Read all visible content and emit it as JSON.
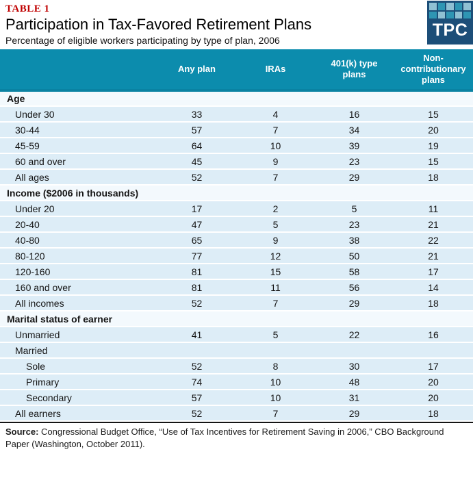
{
  "header": {
    "table_label": "TABLE 1",
    "title": "Participation in Tax-Favored Retirement Plans",
    "subtitle": "Percentage of eligible workers participating by type of plan, 2006",
    "logo": {
      "text": "TPC",
      "pattern": [
        "LDLDL",
        "DLDLD"
      ]
    }
  },
  "chart_data": {
    "type": "table",
    "title": "Participation in Tax-Favored Retirement Plans",
    "subtitle": "Percentage of eligible workers participating by type of plan, 2006",
    "columns": [
      "Any plan",
      "IRAs",
      "401(k) type plans",
      "Non-contributionary plans"
    ],
    "sections": [
      {
        "label": "Age",
        "rows": [
          {
            "label": "Under 30",
            "indent": 1,
            "values": [
              33,
              4,
              16,
              15
            ]
          },
          {
            "label": "30-44",
            "indent": 1,
            "values": [
              57,
              7,
              34,
              20
            ]
          },
          {
            "label": "45-59",
            "indent": 1,
            "values": [
              64,
              10,
              39,
              19
            ]
          },
          {
            "label": "60 and over",
            "indent": 1,
            "values": [
              45,
              9,
              23,
              15
            ]
          },
          {
            "label": "All ages",
            "indent": 1,
            "values": [
              52,
              7,
              29,
              18
            ]
          }
        ]
      },
      {
        "label": "Income ($2006 in thousands)",
        "rows": [
          {
            "label": "Under 20",
            "indent": 1,
            "values": [
              17,
              2,
              5,
              11
            ]
          },
          {
            "label": "20-40",
            "indent": 1,
            "values": [
              47,
              5,
              23,
              21
            ]
          },
          {
            "label": "40-80",
            "indent": 1,
            "values": [
              65,
              9,
              38,
              22
            ]
          },
          {
            "label": "80-120",
            "indent": 1,
            "values": [
              77,
              12,
              50,
              21
            ]
          },
          {
            "label": "120-160",
            "indent": 1,
            "values": [
              81,
              15,
              58,
              17
            ]
          },
          {
            "label": "160 and over",
            "indent": 1,
            "values": [
              81,
              11,
              56,
              14
            ]
          },
          {
            "label": "All incomes",
            "indent": 1,
            "values": [
              52,
              7,
              29,
              18
            ]
          }
        ]
      },
      {
        "label": "Marital status of earner",
        "rows": [
          {
            "label": "Unmarried",
            "indent": 1,
            "values": [
              41,
              5,
              22,
              16
            ]
          },
          {
            "label": "Married",
            "indent": 1,
            "values": []
          },
          {
            "label": "Sole",
            "indent": 2,
            "values": [
              52,
              8,
              30,
              17
            ]
          },
          {
            "label": "Primary",
            "indent": 2,
            "values": [
              74,
              10,
              48,
              20
            ]
          },
          {
            "label": "Secondary",
            "indent": 2,
            "values": [
              57,
              10,
              31,
              20
            ]
          },
          {
            "label": "All earners",
            "indent": 1,
            "values": [
              52,
              7,
              29,
              18
            ]
          }
        ]
      }
    ]
  },
  "source": {
    "label": "Source:",
    "text": "Congressional Budget Office, “Use of Tax Incentives for Retirement Saving in 2006,” CBO Background Paper (Washington, October 2011)."
  },
  "colors": {
    "header_teal": "#0C8CAD",
    "header_teal_border": "#0A82A2",
    "data_row_blue": "#DDEDF7",
    "section_row": "#F3F9FD",
    "table_label_red": "#C00000",
    "logo_navy": "#1C4E78",
    "logo_square_light": "#8FC0D3",
    "logo_square_dark": "#2E95B3",
    "bottom_border": "#141414"
  }
}
